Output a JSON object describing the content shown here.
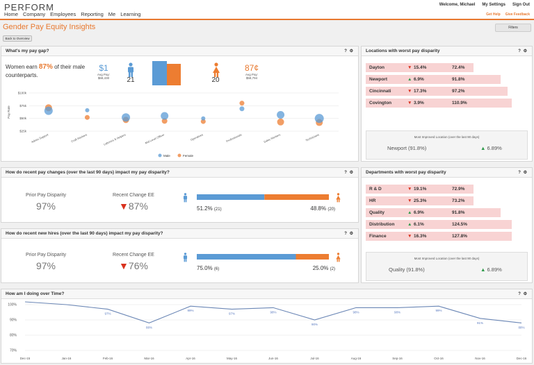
{
  "app": {
    "logo": "PERFORM",
    "nav": [
      "Home",
      "Company",
      "Employees",
      "Reporting",
      "Me",
      "Learning"
    ],
    "user_links": [
      "Welcome, Michael",
      "My Settings",
      "Sign Out"
    ],
    "help_links": [
      "Get Help",
      "Give Feedback"
    ],
    "page_title": "Gender Pay Equity Insights",
    "filters_label": "Filters",
    "back_label": "Back to Overview",
    "accent": "#e8782e",
    "male_color": "#5b9bd5",
    "female_color": "#ed7d31"
  },
  "gap": {
    "title": "What's my pay gap?",
    "headline_pre": "Women earn ",
    "headline_pct": "87%",
    "headline_post": " of their male counterparts.",
    "male_pay": "$1",
    "male_avg_label": "Avg Pay:",
    "male_avg": "$68,430",
    "male_count": "21",
    "female_pay": "87¢",
    "female_avg_label": "Avg Pay:",
    "female_avg": "$58,794",
    "female_count": "20"
  },
  "chart_data": {
    "type": "scatter",
    "ylabel": "Pay Rate",
    "yticks": [
      "$100k",
      "$75k",
      "$50k",
      "$25k"
    ],
    "ylim": [
      25000,
      100000
    ],
    "categories": [
      "Admin Support",
      "Craft Workers",
      "Laborers & Helpers",
      "Mid Level Officer",
      "Operatives",
      "Professionals",
      "Sales Workers",
      "Technicians"
    ],
    "series": [
      {
        "name": "Male",
        "values": [
          65000,
          66000,
          52000,
          55000,
          50000,
          69000,
          57000,
          50000
        ],
        "sizes": [
          12,
          6,
          12,
          11,
          6,
          7,
          11,
          13
        ]
      },
      {
        "name": "Female",
        "values": [
          71000,
          52000,
          47000,
          45000,
          44000,
          80000,
          43000,
          42000
        ],
        "sizes": [
          10,
          7,
          9,
          8,
          7,
          7,
          10,
          10
        ]
      }
    ]
  },
  "locations": {
    "title": "Locations with worst pay disparity",
    "rows": [
      {
        "name": "Dayton",
        "dir": "down",
        "change": "15.4%",
        "value": "72.4%",
        "fill": 0.73
      },
      {
        "name": "Newport",
        "dir": "up",
        "change": "6.9%",
        "value": "91.8%",
        "fill": 0.92
      },
      {
        "name": "Cincinnati",
        "dir": "down",
        "change": "17.3%",
        "value": "97.2%",
        "fill": 0.97
      },
      {
        "name": "Covington",
        "dir": "down",
        "change": "3.9%",
        "value": "110.9%",
        "fill": 1.0
      }
    ],
    "improved_label": "Most Improved Location (over the last 90 days)",
    "improved_name": "Newport (91.8%)",
    "improved_change": "6.89%"
  },
  "changes": {
    "title": "How do recent pay changes (over the last 90 days) impact my pay disparity?",
    "prior_label": "Prior Pay Disparity",
    "prior_value": "97%",
    "recent_label": "Recent Change EE",
    "recent_value": "87%",
    "male_pct": "51.2%",
    "male_n": "(21)",
    "female_pct": "48.8%",
    "female_n": "(20)",
    "male_share": 0.512
  },
  "hires": {
    "title": "How do recent new hires (over the last 90 days) impact my pay disparity?",
    "prior_label": "Prior Pay Disparity",
    "prior_value": "97%",
    "recent_label": "Recent Change EE",
    "recent_value": "76%",
    "male_pct": "75.0%",
    "male_n": "(6)",
    "female_pct": "25.0%",
    "female_n": "(2)",
    "male_share": 0.75
  },
  "departments": {
    "title": "Departments with worst pay disparity",
    "rows": [
      {
        "name": "R & D",
        "dir": "down",
        "change": "19.1%",
        "value": "72.9%",
        "fill": 0.73
      },
      {
        "name": "HR",
        "dir": "down",
        "change": "25.3%",
        "value": "73.2%",
        "fill": 0.73
      },
      {
        "name": "Quality",
        "dir": "up",
        "change": "6.9%",
        "value": "91.8%",
        "fill": 0.92
      },
      {
        "name": "Distribution",
        "dir": "up",
        "change": "6.1%",
        "value": "124.5%",
        "fill": 1.0
      },
      {
        "name": "Finance",
        "dir": "down",
        "change": "16.3%",
        "value": "127.8%",
        "fill": 1.0
      }
    ],
    "improved_label": "Most Improved Location (over the last 90 days)",
    "improved_name": "Quality (91.8%)",
    "improved_change": "6.89%"
  },
  "overtime": {
    "title": "How am I doing over Time?",
    "chart_data": {
      "type": "line",
      "x": [
        "Dec-15",
        "Jan-16",
        "Feb-16",
        "Mar-16",
        "Apr-16",
        "May-16",
        "Jun-16",
        "Jul-16",
        "Aug-16",
        "Sep-16",
        "Oct-16",
        "Nov-16",
        "Dec-16"
      ],
      "values": [
        102,
        100,
        97,
        88,
        99,
        97,
        98,
        90,
        98,
        98,
        99,
        91,
        88
      ],
      "labels": [
        "",
        "",
        "97%",
        "88%",
        "99%",
        "97%",
        "98%",
        "90%",
        "98%",
        "98%",
        "99%",
        "91%",
        "88%"
      ],
      "yticks": [
        "100%",
        "90%",
        "80%",
        "70%"
      ],
      "ylim": [
        70,
        100
      ]
    }
  }
}
